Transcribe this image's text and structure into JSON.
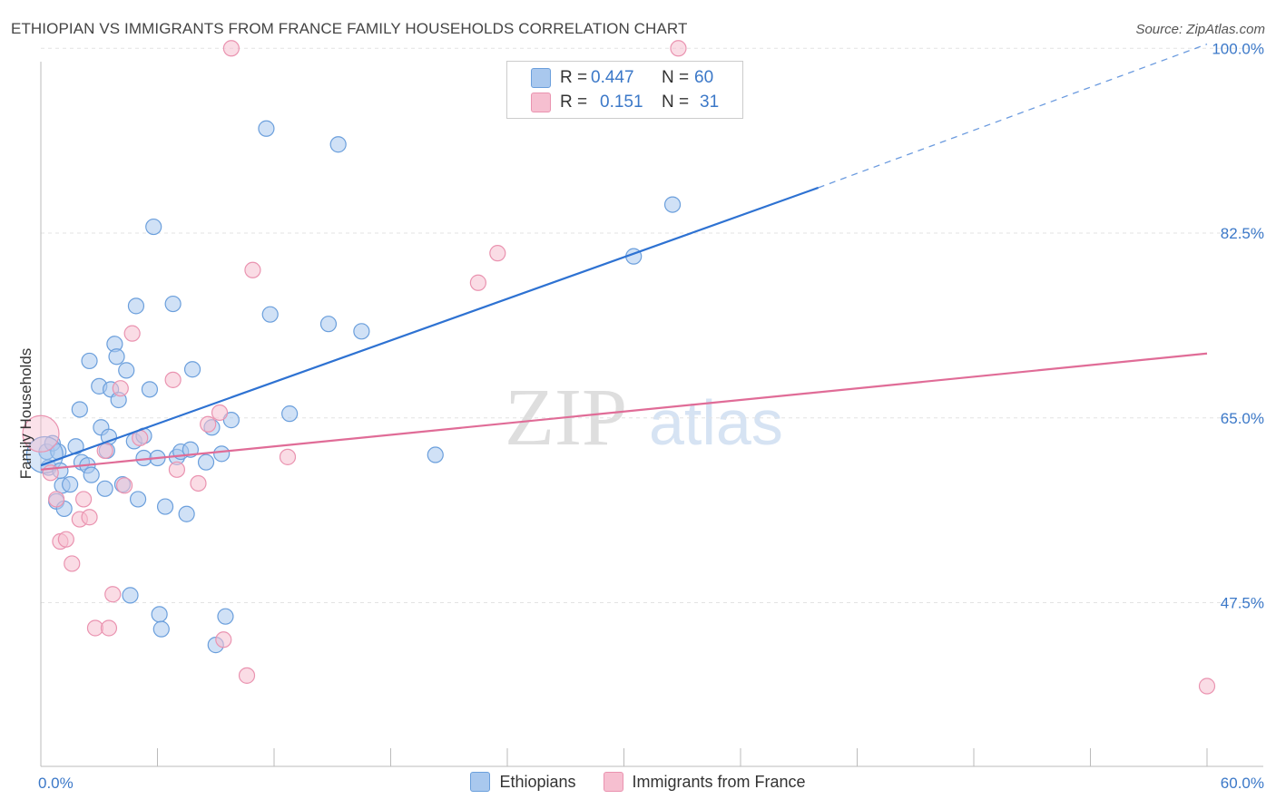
{
  "title": "ETHIOPIAN VS IMMIGRANTS FROM FRANCE FAMILY HOUSEHOLDS CORRELATION CHART",
  "source": "Source: ZipAtlas.com",
  "watermark": {
    "zip": "ZIP",
    "atlas": "atlas"
  },
  "colors": {
    "blue_fill": "#a9c8ee",
    "blue_stroke": "#6b9fdc",
    "blue_line": "#2e72d2",
    "pink_fill": "#f6bfd0",
    "pink_stroke": "#ea93b0",
    "pink_line": "#e06c97",
    "accent_text": "#3b78c8"
  },
  "stats": {
    "r_label": "R =",
    "n_label": "N =",
    "rows": [
      {
        "r": "0.447",
        "n": "60"
      },
      {
        "r": "0.151",
        "n": "31"
      }
    ]
  },
  "chart_data": {
    "type": "scatter",
    "title": "ETHIOPIAN VS IMMIGRANTS FROM FRANCE FAMILY HOUSEHOLDS CORRELATION CHART",
    "ylabel": "Family Households",
    "xlabel": "",
    "xlim": [
      0,
      60
    ],
    "ylim": [
      32,
      102
    ],
    "x_tick_labels": [
      "0.0%",
      "60.0%"
    ],
    "y_ticks": [
      {
        "value": 100,
        "label": "100.0%"
      },
      {
        "value": 82.5,
        "label": "82.5%"
      },
      {
        "value": 65,
        "label": "65.0%"
      },
      {
        "value": 47.5,
        "label": "47.5%"
      }
    ],
    "grid": true,
    "legend": [
      "Ethiopians",
      "Immigrants from France"
    ],
    "series": [
      {
        "name": "Ethiopians",
        "trend": {
          "x0": 0,
          "y0": 60.5,
          "x1": 40,
          "y1": 86.8,
          "dash_to_x": 60,
          "dash_to_y": 100.4
        },
        "points": [
          [
            0.3,
            61.8
          ],
          [
            0.6,
            62.6
          ],
          [
            0.9,
            61.8
          ],
          [
            0.4,
            60.3
          ],
          [
            0.8,
            57.1
          ],
          [
            1.1,
            58.6
          ],
          [
            1.2,
            56.4
          ],
          [
            1.5,
            58.7
          ],
          [
            1.8,
            62.3
          ],
          [
            2.0,
            65.8
          ],
          [
            2.1,
            60.8
          ],
          [
            2.4,
            60.5
          ],
          [
            2.5,
            70.4
          ],
          [
            2.6,
            59.6
          ],
          [
            3.0,
            68.0
          ],
          [
            3.1,
            64.1
          ],
          [
            3.3,
            58.3
          ],
          [
            3.4,
            61.9
          ],
          [
            3.5,
            63.2
          ],
          [
            3.6,
            67.7
          ],
          [
            3.8,
            72.0
          ],
          [
            3.9,
            70.8
          ],
          [
            4.0,
            66.7
          ],
          [
            4.2,
            58.7
          ],
          [
            4.4,
            69.5
          ],
          [
            4.6,
            48.2
          ],
          [
            4.8,
            62.8
          ],
          [
            4.9,
            75.6
          ],
          [
            5.0,
            57.3
          ],
          [
            5.3,
            63.3
          ],
          [
            5.3,
            61.2
          ],
          [
            5.6,
            67.7
          ],
          [
            5.8,
            83.1
          ],
          [
            6.0,
            61.2
          ],
          [
            6.1,
            46.4
          ],
          [
            6.2,
            45.0
          ],
          [
            6.4,
            56.6
          ],
          [
            6.8,
            75.8
          ],
          [
            7.0,
            61.3
          ],
          [
            7.2,
            61.8
          ],
          [
            7.5,
            55.9
          ],
          [
            7.7,
            62.0
          ],
          [
            7.8,
            69.6
          ],
          [
            8.5,
            60.8
          ],
          [
            8.8,
            64.1
          ],
          [
            9.0,
            43.5
          ],
          [
            9.3,
            61.6
          ],
          [
            9.5,
            46.2
          ],
          [
            9.8,
            64.8
          ],
          [
            11.6,
            92.4
          ],
          [
            11.8,
            74.8
          ],
          [
            12.8,
            65.4
          ],
          [
            14.8,
            73.9
          ],
          [
            15.3,
            90.9
          ],
          [
            16.5,
            73.2
          ],
          [
            20.3,
            61.5
          ],
          [
            30.5,
            80.3
          ],
          [
            32.5,
            85.2
          ],
          [
            0.2,
            61.5
          ],
          [
            1.0,
            60.0
          ]
        ]
      },
      {
        "name": "Immigrants from France",
        "trend": {
          "x0": 0,
          "y0": 60.1,
          "x1": 60,
          "y1": 71.1
        },
        "points": [
          [
            0.0,
            63.5
          ],
          [
            0.5,
            59.8
          ],
          [
            0.8,
            57.3
          ],
          [
            1.0,
            53.3
          ],
          [
            1.3,
            53.5
          ],
          [
            1.6,
            51.2
          ],
          [
            2.0,
            55.4
          ],
          [
            2.2,
            57.3
          ],
          [
            2.5,
            55.6
          ],
          [
            2.8,
            45.1
          ],
          [
            3.3,
            61.9
          ],
          [
            3.5,
            45.1
          ],
          [
            3.7,
            48.3
          ],
          [
            4.1,
            67.8
          ],
          [
            4.3,
            58.6
          ],
          [
            4.7,
            73.0
          ],
          [
            5.1,
            63.1
          ],
          [
            6.8,
            68.6
          ],
          [
            7.0,
            60.1
          ],
          [
            8.1,
            58.8
          ],
          [
            8.6,
            64.4
          ],
          [
            9.2,
            65.5
          ],
          [
            9.4,
            44.0
          ],
          [
            9.8,
            100.0
          ],
          [
            10.6,
            40.6
          ],
          [
            10.9,
            79.0
          ],
          [
            12.7,
            61.3
          ],
          [
            22.5,
            77.8
          ],
          [
            23.5,
            80.6
          ],
          [
            32.8,
            100.0
          ],
          [
            60.0,
            39.6
          ]
        ]
      }
    ]
  }
}
